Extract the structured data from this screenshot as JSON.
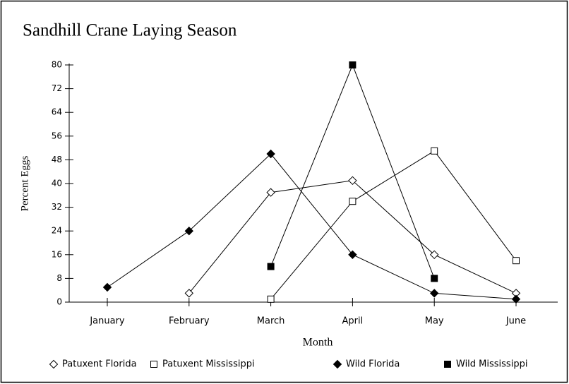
{
  "chart_data": {
    "type": "line",
    "title": "Sandhill Crane Laying Season",
    "x_label": "Month",
    "y_label": "Percent Eggs",
    "categories": [
      "January",
      "February",
      "March",
      "April",
      "May",
      "June"
    ],
    "ylim": [
      0,
      80
    ],
    "yticks": [
      0,
      8,
      16,
      24,
      32,
      40,
      48,
      56,
      64,
      72,
      80
    ],
    "series": [
      {
        "name": "Patuxent Florida",
        "color": "#000000",
        "marker": "diamond",
        "filled": false,
        "values": [
          null,
          3,
          37,
          41,
          16,
          3
        ]
      },
      {
        "name": "Patuxent Mississippi",
        "color": "#000000",
        "marker": "square",
        "filled": false,
        "values": [
          null,
          null,
          1,
          34,
          51,
          14
        ]
      },
      {
        "name": "Wild Florida",
        "color": "#000000",
        "marker": "diamond",
        "filled": true,
        "values": [
          5,
          24,
          50,
          16,
          3,
          1
        ]
      },
      {
        "name": "Wild Mississippi",
        "color": "#000000",
        "marker": "square",
        "filled": true,
        "values": [
          null,
          null,
          12,
          80,
          8,
          null
        ]
      }
    ]
  }
}
